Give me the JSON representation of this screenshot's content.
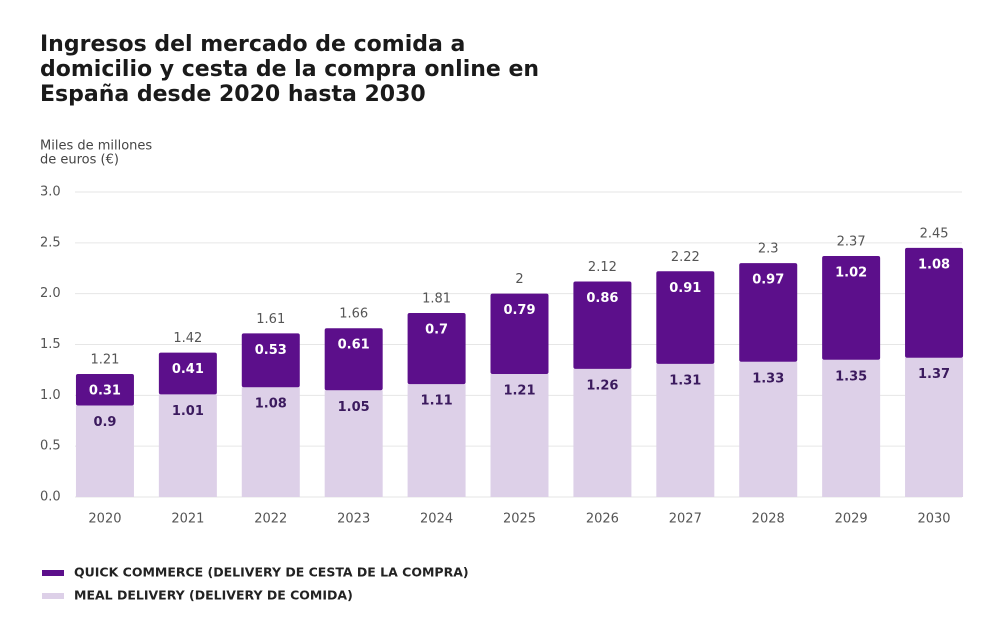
{
  "chart_data": {
    "type": "stacked_bar",
    "title": [
      "Ingresos del mercado de comida a",
      "domicilio y cesta de la compra online en",
      "España desde 2020 hasta 2030"
    ],
    "y_label": [
      "Miles de millones",
      "de euros (€)"
    ],
    "categories": [
      "2020",
      "2021",
      "2022",
      "2023",
      "2024",
      "2025",
      "2026",
      "2027",
      "2028",
      "2029",
      "2030"
    ],
    "series": [
      {
        "name": "MEAL DELIVERY (DELIVERY DE COMIDA)",
        "color": "#ddd0e8",
        "label_color": "#3b1a5e",
        "values": [
          0.9,
          1.01,
          1.08,
          1.05,
          1.11,
          1.21,
          1.26,
          1.31,
          1.33,
          1.35,
          1.37
        ]
      },
      {
        "name": "QUICK COMMERCE (DELIVERY DE CESTA DE LA COMPRA)",
        "color": "#5c0f8b",
        "label_color": "#ffffff",
        "values": [
          0.31,
          0.41,
          0.53,
          0.61,
          0.7,
          0.79,
          0.86,
          0.91,
          0.97,
          1.02,
          1.08
        ]
      }
    ],
    "totals": [
      1.21,
      1.42,
      1.61,
      1.66,
      1.81,
      2,
      2.12,
      2.22,
      2.3,
      2.37,
      2.45
    ],
    "ylim": [
      0,
      3
    ],
    "yticks": [
      {
        "value": 0,
        "label": "0.0"
      },
      0.5,
      {
        "value": 1,
        "label": "1.0"
      },
      1.5,
      {
        "value": 2,
        "label": "2.0"
      },
      2.5,
      {
        "value": 3,
        "label": "3.0"
      }
    ],
    "grid": true
  }
}
